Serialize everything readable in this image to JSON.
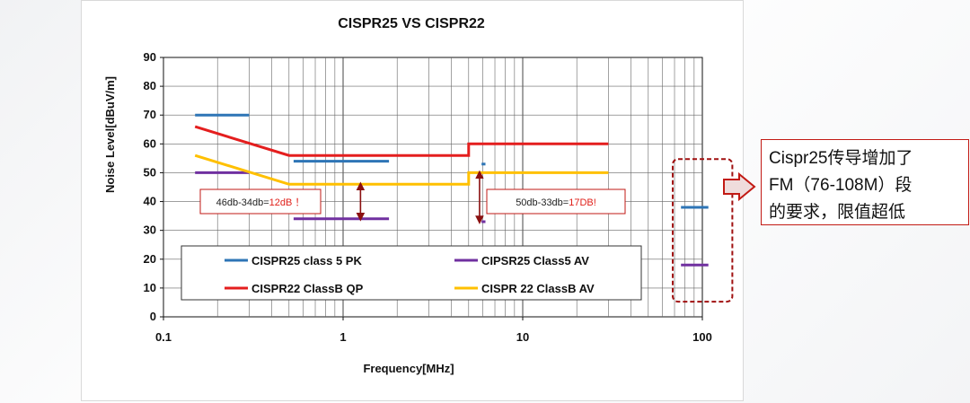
{
  "chart_data": {
    "type": "line",
    "title": "CISPR25 VS CISPR22",
    "xlabel": "Frequency[MHz]",
    "ylabel": "Noise Level[dBuV/m]",
    "x_scale": "log",
    "xlim": [
      0.1,
      100
    ],
    "ylim": [
      0,
      90
    ],
    "x_tick_labels": [
      "0.1",
      "1",
      "10",
      "100"
    ],
    "x_ticks": [
      0.1,
      1,
      10,
      100
    ],
    "y_ticks": [
      0,
      10,
      20,
      30,
      40,
      50,
      60,
      70,
      80,
      90
    ],
    "grid": true,
    "legend_position": "inside-bottom",
    "series": [
      {
        "name": "CISPR25 class 5 PK",
        "color": "#2e75b6",
        "segments": [
          [
            [
              0.15,
              70
            ],
            [
              0.3,
              70
            ]
          ],
          [
            [
              0.53,
              54
            ],
            [
              1.8,
              54
            ]
          ],
          [
            [
              5.9,
              53
            ],
            [
              6.2,
              53
            ]
          ],
          [
            [
              76,
              38
            ],
            [
              108,
              38
            ]
          ]
        ]
      },
      {
        "name": "CIPSR25 Class5 AV",
        "color": "#7030a0",
        "segments": [
          [
            [
              0.15,
              50
            ],
            [
              0.3,
              50
            ]
          ],
          [
            [
              0.53,
              34
            ],
            [
              1.8,
              34
            ]
          ],
          [
            [
              5.9,
              33
            ],
            [
              6.2,
              33
            ]
          ],
          [
            [
              76,
              18
            ],
            [
              108,
              18
            ]
          ]
        ]
      },
      {
        "name": "CISPR22 ClassB QP",
        "color": "#e41e1e",
        "segments": [
          [
            [
              0.15,
              66
            ],
            [
              0.5,
              56
            ],
            [
              5,
              56
            ],
            [
              5,
              60
            ],
            [
              30,
              60
            ]
          ]
        ]
      },
      {
        "name": "CISPR 22 ClassB AV",
        "color": "#ffc000",
        "segments": [
          [
            [
              0.15,
              56
            ],
            [
              0.5,
              46
            ],
            [
              5,
              46
            ],
            [
              5,
              50
            ],
            [
              30,
              50
            ]
          ]
        ]
      }
    ],
    "annotations": [
      {
        "text_prefix": "46db-34db=",
        "text_value": "12dB",
        "text_suffix": "！",
        "x": 1.25,
        "y1": 46,
        "y2": 34
      },
      {
        "text_prefix": "50db-33db=",
        "text_value": "17DB!",
        "text_suffix": "",
        "x": 5.75,
        "y1": 50,
        "y2": 33
      }
    ],
    "highlight_region": {
      "x": [
        70,
        125
      ],
      "y": [
        9,
        51
      ]
    }
  },
  "callout": {
    "lines": [
      "Cispr25传导增加了",
      "FM（76-108M）段",
      "的要求，限值超低"
    ]
  }
}
